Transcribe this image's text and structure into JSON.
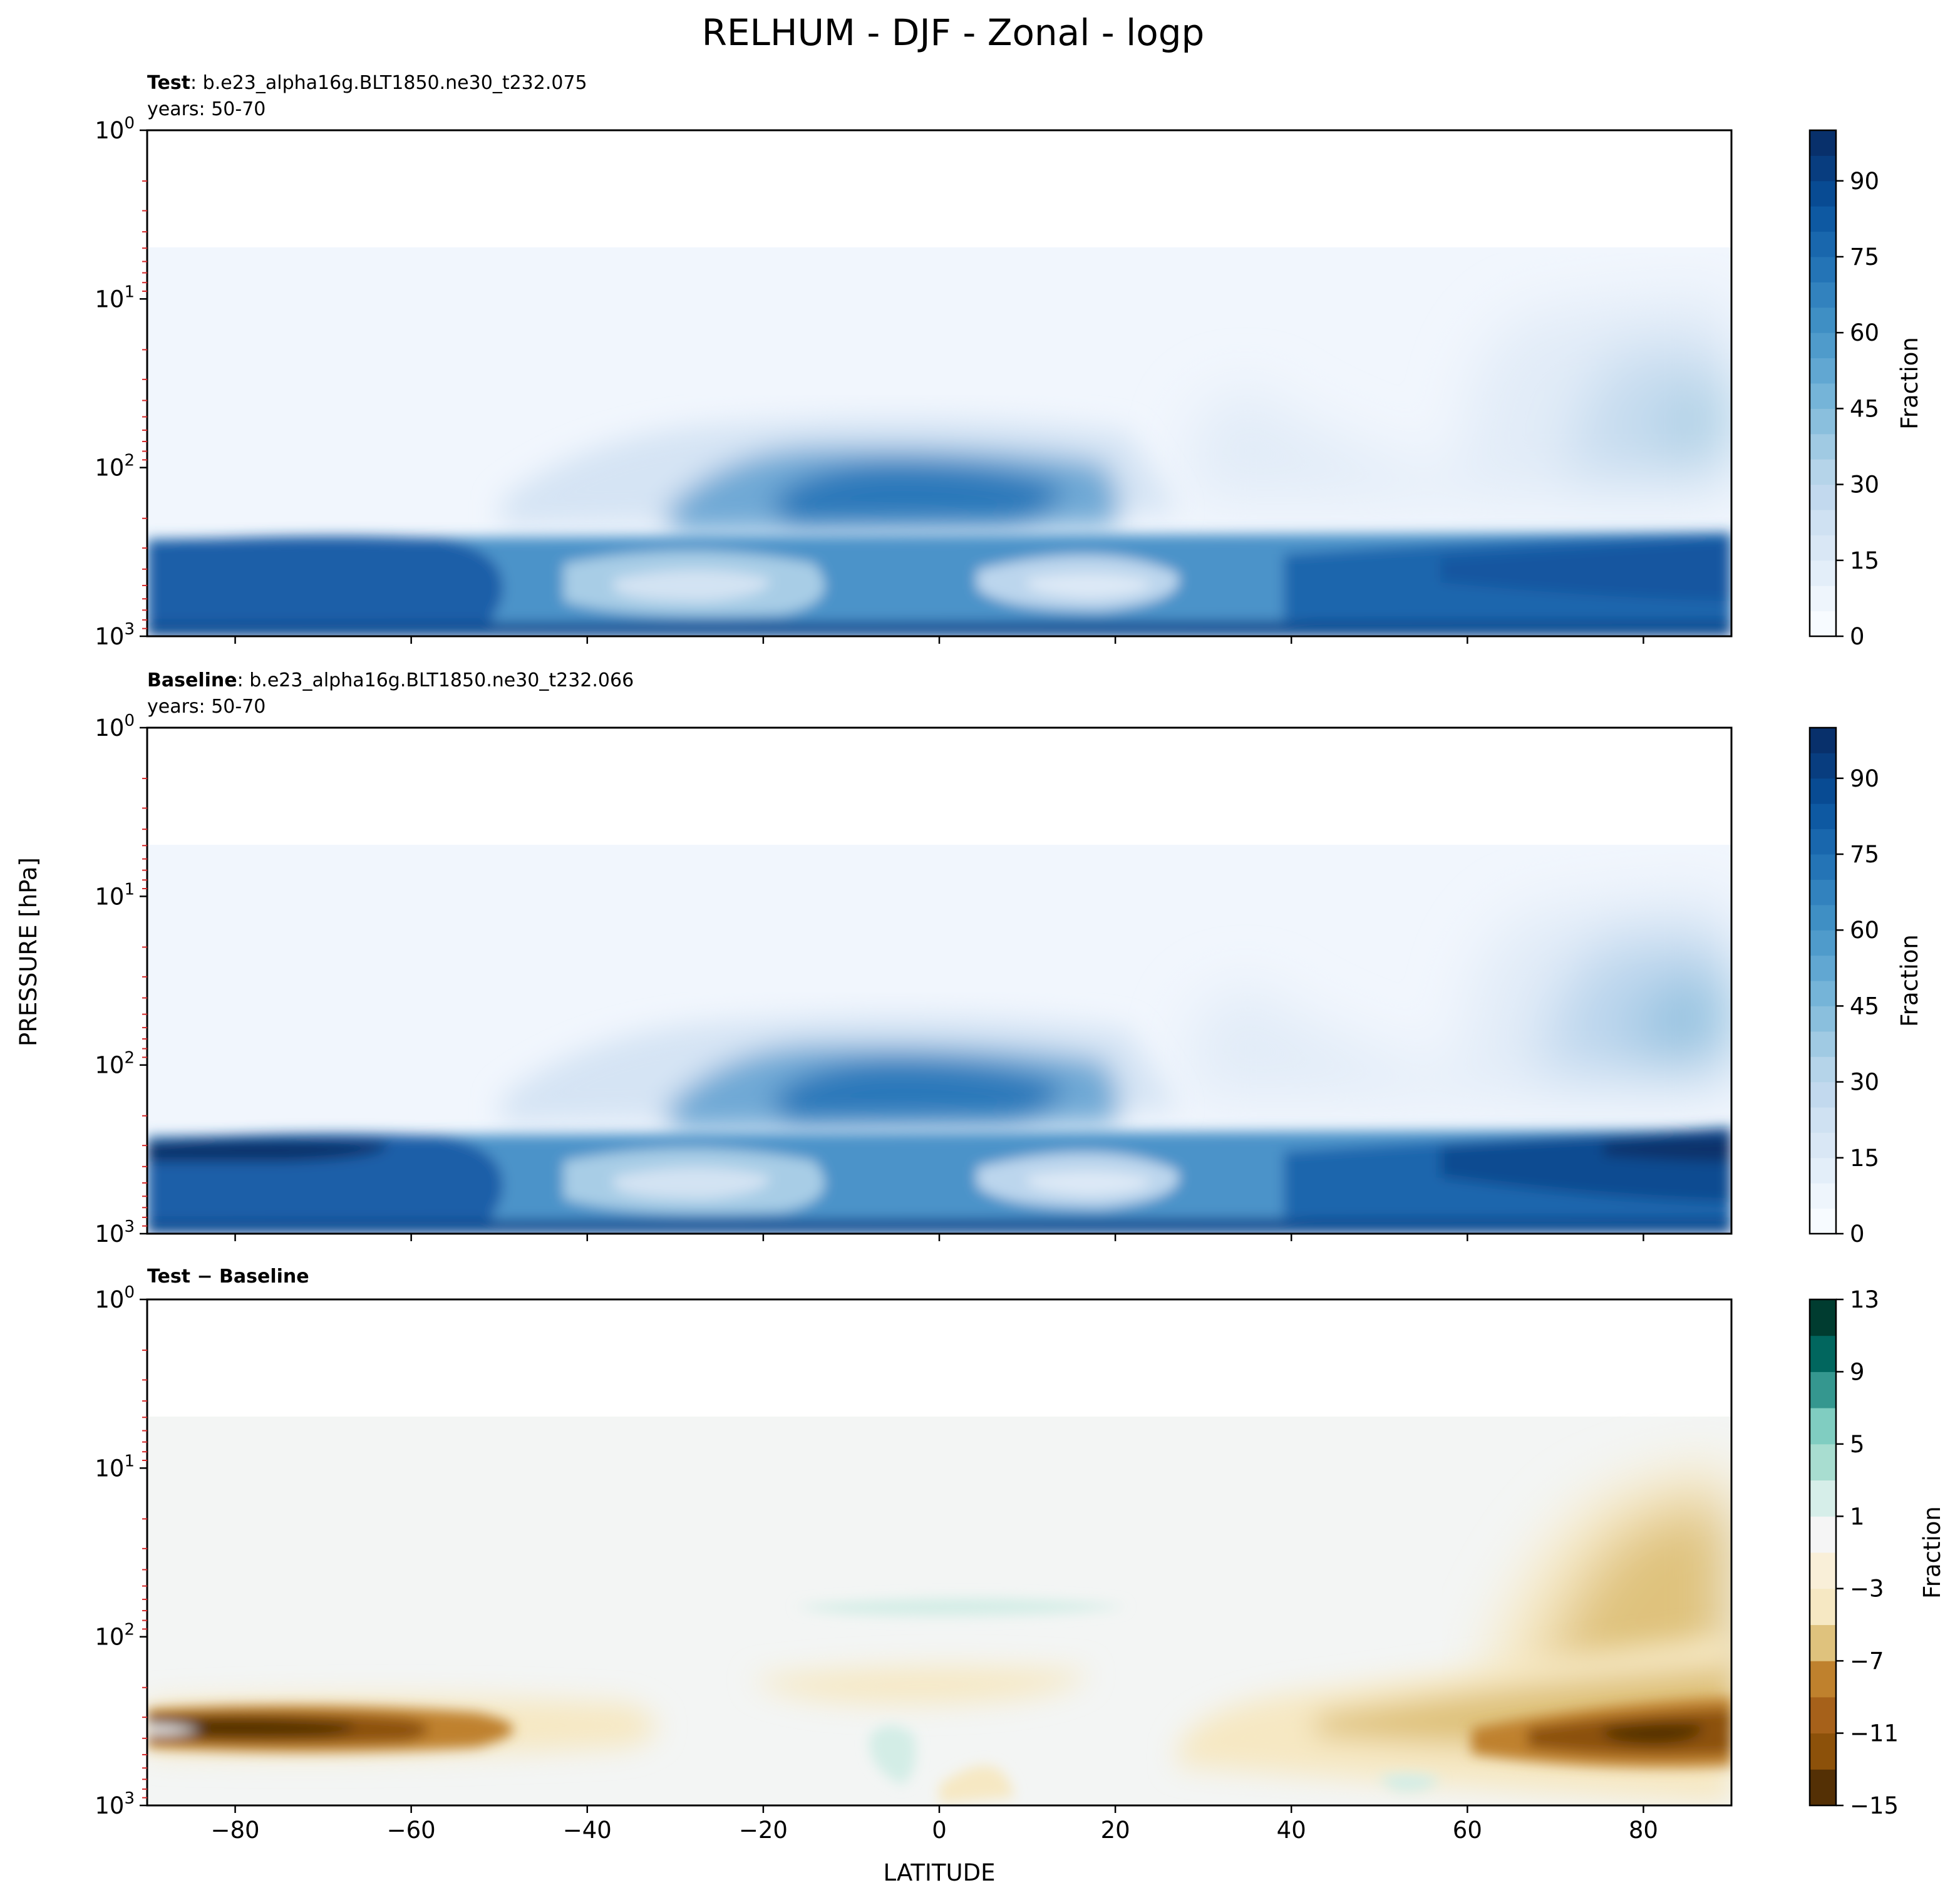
{
  "figure": {
    "title": "RELHUM - DJF - Zonal - logp",
    "shared_ylabel": "PRESSURE [hPa]",
    "shared_xlabel": "LATITUDE"
  },
  "chart_data": [
    {
      "type": "heatmap",
      "panel_id": "test",
      "title_bold": "Test",
      "title_rest": ": b.e23_alpha16g.BLT1850.ne30_t232.075",
      "subtitle": "years: 50-70",
      "xlim": [
        -90,
        90
      ],
      "ylim": [
        1000,
        1
      ],
      "yscale": "log",
      "x_ticks": [
        -80,
        -60,
        -40,
        -20,
        0,
        20,
        40,
        60,
        80
      ],
      "y_ticks": [
        1,
        10,
        100,
        1000
      ],
      "y_tick_labels": [
        [
          "10",
          "0"
        ],
        [
          "10",
          "1"
        ],
        [
          "10",
          "2"
        ],
        [
          "10",
          "3"
        ]
      ],
      "colormap": "Blues",
      "colorbar": {
        "label": "Fraction",
        "levels": [
          0,
          5,
          10,
          15,
          20,
          25,
          30,
          35,
          40,
          45,
          50,
          55,
          60,
          65,
          70,
          75,
          80,
          85,
          90,
          95,
          100
        ],
        "tick_values": [
          0,
          15,
          30,
          45,
          60,
          75,
          90
        ],
        "tick_labels": [
          "0",
          "15",
          "30",
          "45",
          "60",
          "75",
          "90"
        ]
      },
      "features": [
        {
          "name": "lower-troposphere moist band",
          "lat_range": [
            -90,
            90
          ],
          "p_range": [
            200,
            1000
          ],
          "value": 75
        },
        {
          "name": "tropical upper-level maximum",
          "lat_range": [
            -20,
            15
          ],
          "p_range": [
            80,
            150
          ],
          "value": 75
        },
        {
          "name": "subtropical dry minima",
          "lat_range": [
            -30,
            -15
          ],
          "p_range": [
            450,
            550
          ],
          "value": 20
        }
      ]
    },
    {
      "type": "heatmap",
      "panel_id": "baseline",
      "title_bold": "Baseline",
      "title_rest": ": b.e23_alpha16g.BLT1850.ne30_t232.066",
      "subtitle": "years: 50-70",
      "xlim": [
        -90,
        90
      ],
      "ylim": [
        1000,
        1
      ],
      "yscale": "log",
      "x_ticks": [
        -80,
        -60,
        -40,
        -20,
        0,
        20,
        40,
        60,
        80
      ],
      "y_ticks": [
        1,
        10,
        100,
        1000
      ],
      "y_tick_labels": [
        [
          "10",
          "0"
        ],
        [
          "10",
          "1"
        ],
        [
          "10",
          "2"
        ],
        [
          "10",
          "3"
        ]
      ],
      "colormap": "Blues",
      "colorbar": {
        "label": "Fraction",
        "levels": [
          0,
          5,
          10,
          15,
          20,
          25,
          30,
          35,
          40,
          45,
          50,
          55,
          60,
          65,
          70,
          75,
          80,
          85,
          90,
          95,
          100
        ],
        "tick_values": [
          0,
          15,
          30,
          45,
          60,
          75,
          90
        ],
        "tick_labels": [
          "0",
          "15",
          "30",
          "45",
          "60",
          "75",
          "90"
        ]
      },
      "features": [
        {
          "name": "lower-troposphere moist band",
          "lat_range": [
            -90,
            90
          ],
          "p_range": [
            200,
            1000
          ],
          "value": 78
        },
        {
          "name": "tropical upper-level maximum",
          "lat_range": [
            -20,
            15
          ],
          "p_range": [
            80,
            150
          ],
          "value": 75
        },
        {
          "name": "arctic upper-level moisture",
          "lat_range": [
            65,
            90
          ],
          "p_range": [
            12,
            100
          ],
          "value": 40
        }
      ]
    },
    {
      "type": "heatmap",
      "panel_id": "difference",
      "title_bold": "Test − Baseline",
      "title_rest": "",
      "subtitle": "",
      "xlim": [
        -90,
        90
      ],
      "ylim": [
        1000,
        1
      ],
      "yscale": "log",
      "x_ticks": [
        -80,
        -60,
        -40,
        -20,
        0,
        20,
        40,
        60,
        80
      ],
      "x_tick_labels": [
        "−80",
        "−60",
        "−40",
        "−20",
        "0",
        "20",
        "40",
        "60",
        "80"
      ],
      "y_ticks": [
        1,
        10,
        100,
        1000
      ],
      "y_tick_labels": [
        [
          "10",
          "0"
        ],
        [
          "10",
          "1"
        ],
        [
          "10",
          "2"
        ],
        [
          "10",
          "3"
        ]
      ],
      "colormap": "BrBG",
      "colorbar": {
        "label": "Fraction",
        "levels": [
          -15,
          -13,
          -11,
          -9,
          -7,
          -5,
          -3,
          -1,
          1,
          3,
          5,
          7,
          9,
          11,
          13
        ],
        "tick_values": [
          -15,
          -11,
          -7,
          -3,
          1,
          5,
          9,
          13
        ],
        "tick_labels": [
          "−15",
          "−11",
          "−7",
          "−3",
          "1",
          "5",
          "9",
          "13"
        ]
      },
      "features": [
        {
          "name": "southern high-latitude drying",
          "lat_range": [
            -90,
            -55
          ],
          "p_range": [
            250,
            380
          ],
          "value": -13
        },
        {
          "name": "arctic drying",
          "lat_range": [
            65,
            90
          ],
          "p_range": [
            200,
            320
          ],
          "value": -13
        },
        {
          "name": "arctic upper drying",
          "lat_range": [
            70,
            90
          ],
          "p_range": [
            15,
            120
          ],
          "value": -5
        },
        {
          "name": "tropical slight moistening",
          "lat_range": [
            -18,
            20
          ],
          "p_range": [
            65,
            75
          ],
          "value": 2
        }
      ]
    }
  ]
}
